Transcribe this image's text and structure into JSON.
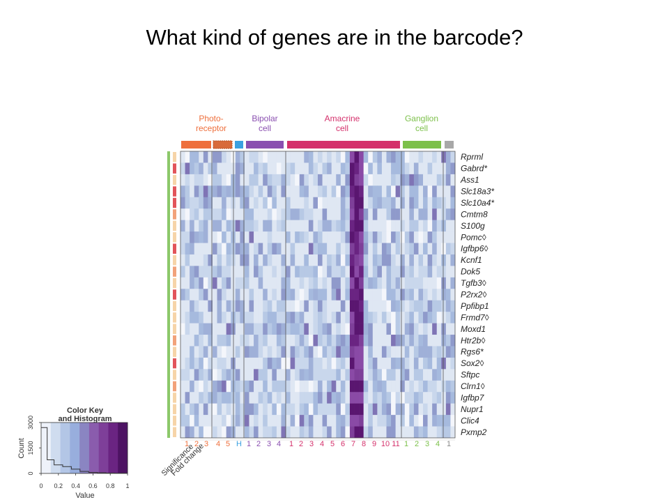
{
  "slide": {
    "title": "What kind of genes are in the barcode?"
  },
  "chart_data": {
    "type": "heatmap",
    "groups": [
      {
        "label": [
          "Photo-",
          "receptor"
        ],
        "color": "#ee6f3c"
      },
      {
        "label": [
          "Bipolar",
          "cell"
        ],
        "color": "#8a4fb0"
      },
      {
        "label": [
          "Amacrine",
          "cell"
        ],
        "color": "#d4306b"
      },
      {
        "label": [
          "Ganglion",
          "cell"
        ],
        "color": "#7cc04a"
      }
    ],
    "column_bar_colors": [
      "#ee6f3c",
      "#d86a3a",
      "#3aa0e0",
      "#8a4fb0",
      "#d4306b",
      "#7cc04a",
      "#a8a8a8"
    ],
    "subtype_labels": [
      {
        "text": "1",
        "color": "#ee6f3c"
      },
      {
        "text": "2",
        "color": "#ee6f3c"
      },
      {
        "text": "3",
        "color": "#ee6f3c"
      },
      {
        "text": "4",
        "color": "#ee6f3c"
      },
      {
        "text": "5",
        "color": "#ee6f3c"
      },
      {
        "text": "H",
        "color": "#3aa0e0"
      },
      {
        "text": "1",
        "color": "#8a4fb0"
      },
      {
        "text": "2",
        "color": "#8a4fb0"
      },
      {
        "text": "3",
        "color": "#8a4fb0"
      },
      {
        "text": "4",
        "color": "#8a4fb0"
      },
      {
        "text": "1",
        "color": "#d4306b"
      },
      {
        "text": "2",
        "color": "#d4306b"
      },
      {
        "text": "3",
        "color": "#d4306b"
      },
      {
        "text": "4",
        "color": "#d4306b"
      },
      {
        "text": "5",
        "color": "#d4306b"
      },
      {
        "text": "6",
        "color": "#d4306b"
      },
      {
        "text": "7",
        "color": "#d4306b"
      },
      {
        "text": "8",
        "color": "#d4306b"
      },
      {
        "text": "9",
        "color": "#d4306b"
      },
      {
        "text": "10",
        "color": "#d4306b"
      },
      {
        "text": "11",
        "color": "#d4306b"
      },
      {
        "text": "1",
        "color": "#7cc04a"
      },
      {
        "text": "2",
        "color": "#7cc04a"
      },
      {
        "text": "3",
        "color": "#7cc04a"
      },
      {
        "text": "4",
        "color": "#7cc04a"
      },
      {
        "text": "1",
        "color": "#888888"
      }
    ],
    "genes": [
      "Rprml",
      "Gabrd*",
      "Ass1",
      "Slc18a3*",
      "Slc10a4*",
      "Cmtm8",
      "S100g",
      "Pomc◊",
      "Igfbp6◊",
      "Kcnf1",
      "Dok5",
      "Tgfb3◊",
      "P2rx2◊",
      "Ppfibp1",
      "Frmd7◊",
      "Moxd1",
      "Htr2b◊",
      "Rgs6*",
      "Sox2◊",
      "Sftpc",
      "Clrn1◊",
      "Igfbp7",
      "Nupr1",
      "Clic4",
      "Pxmp2"
    ],
    "side_labels": [
      "Significance",
      "Fold change"
    ],
    "significance": [
      0.3,
      0.85,
      0.2,
      0.9,
      0.8,
      0.5,
      0.2,
      0.3,
      0.85,
      0.2,
      0.5,
      0.2,
      0.8,
      0.2,
      0.3,
      0.2,
      0.5,
      0.2,
      0.8,
      0.2,
      0.5,
      0.2,
      0.3,
      0.2,
      0.3
    ],
    "color_key": {
      "title": [
        "Color Key",
        "and Histogram"
      ],
      "xlabel": "Value",
      "ylabel": "Count",
      "x_ticks": [
        "0",
        "0.2",
        "0.4",
        "0.6",
        "0.8",
        "1"
      ],
      "y_ticks": [
        "0",
        "1500",
        "3000"
      ],
      "xlim": [
        0,
        1
      ],
      "ylim": [
        0,
        3000
      ],
      "colors": [
        "#eef2fa",
        "#cfdcef",
        "#b3c6e6",
        "#98aedd",
        "#8a85c2",
        "#8a5cad",
        "#7e3f99",
        "#6a2482",
        "#4d1363"
      ],
      "histogram": [
        {
          "x": 0.04,
          "y": 2700
        },
        {
          "x": 0.1,
          "y": 800
        },
        {
          "x": 0.2,
          "y": 500
        },
        {
          "x": 0.3,
          "y": 400
        },
        {
          "x": 0.4,
          "y": 250
        },
        {
          "x": 0.5,
          "y": 120
        },
        {
          "x": 0.6,
          "y": 60
        },
        {
          "x": 0.7,
          "y": 40
        },
        {
          "x": 0.8,
          "y": 20
        },
        {
          "x": 0.9,
          "y": 10
        }
      ]
    }
  }
}
